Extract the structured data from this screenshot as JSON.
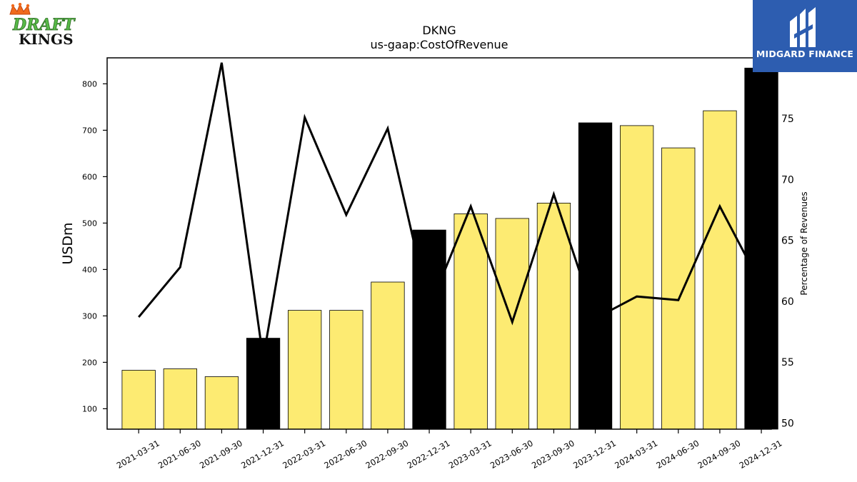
{
  "chart_data": {
    "type": "bar",
    "title": "DKNG",
    "subtitle": "us-gaap:CostOfRevenue",
    "ylabel": "USDm",
    "y2label": "Percentage of Revenues",
    "categories": [
      "2021-03-31",
      "2021-06-30",
      "2021-09-30",
      "2021-12-31",
      "2022-03-31",
      "2022-06-30",
      "2022-09-30",
      "2022-12-31",
      "2023-03-31",
      "2023-06-30",
      "2023-09-30",
      "2023-12-31",
      "2024-03-31",
      "2024-06-30",
      "2024-09-30",
      "2024-12-31"
    ],
    "series": [
      {
        "type": "bar",
        "values": [
          183,
          186,
          169,
          252,
          312,
          312,
          373,
          485,
          520,
          510,
          543,
          716,
          710,
          662,
          742,
          834
        ],
        "highlight": [
          false,
          false,
          false,
          true,
          false,
          false,
          false,
          true,
          false,
          false,
          false,
          true,
          false,
          false,
          false,
          true
        ]
      },
      {
        "type": "line",
        "axis": "right",
        "values": [
          58.7,
          62.8,
          79.6,
          55.3,
          75.1,
          67.1,
          74.2,
          59.4,
          67.8,
          58.3,
          68.8,
          58.6,
          60.4,
          60.1,
          67.8,
          61.3
        ]
      }
    ],
    "ylim": [
      56,
      856
    ],
    "yticks": [
      100,
      200,
      300,
      400,
      500,
      600,
      700,
      800
    ],
    "y2lim": [
      49.5,
      80
    ],
    "y2ticks": [
      50,
      55,
      60,
      65,
      70,
      75
    ],
    "colors": {
      "bar": "#fdeb72",
      "highlight": "#000000",
      "line": "#000000",
      "edge": "#000000"
    }
  },
  "logos": {
    "left": {
      "word1": "DRAFT",
      "word2": "KINGS"
    },
    "right": {
      "text": "MIDGARD FINANCE"
    }
  }
}
